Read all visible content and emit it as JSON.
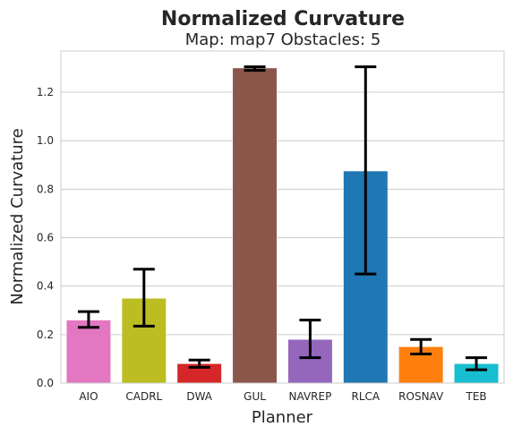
{
  "chart_data": {
    "type": "bar",
    "title": "Normalized Curvature",
    "subtitle": "Map: map7 Obstacles: 5",
    "xlabel": "Planner",
    "ylabel": "Normalized Curvature",
    "ylim": [
      0,
      1.37
    ],
    "yticks": [
      "0.0",
      "0.2",
      "0.4",
      "0.6",
      "0.8",
      "1.0",
      "1.2"
    ],
    "grid": true,
    "categories": [
      "AIO",
      "CADRL",
      "DWA",
      "GUL",
      "NAVREP",
      "RLCA",
      "ROSNAV",
      "TEB"
    ],
    "values": [
      0.26,
      0.35,
      0.08,
      1.3,
      0.18,
      0.875,
      0.15,
      0.08
    ],
    "error_low": [
      0.23,
      0.235,
      0.065,
      1.29,
      0.105,
      0.45,
      0.12,
      0.055
    ],
    "error_high": [
      0.295,
      0.47,
      0.095,
      1.305,
      0.26,
      1.305,
      0.18,
      0.105
    ],
    "colors": [
      "#e377c2",
      "#bcbd22",
      "#d62728",
      "#8c564b",
      "#9467bd",
      "#1f77b4",
      "#ff7f0e",
      "#17becf"
    ]
  }
}
